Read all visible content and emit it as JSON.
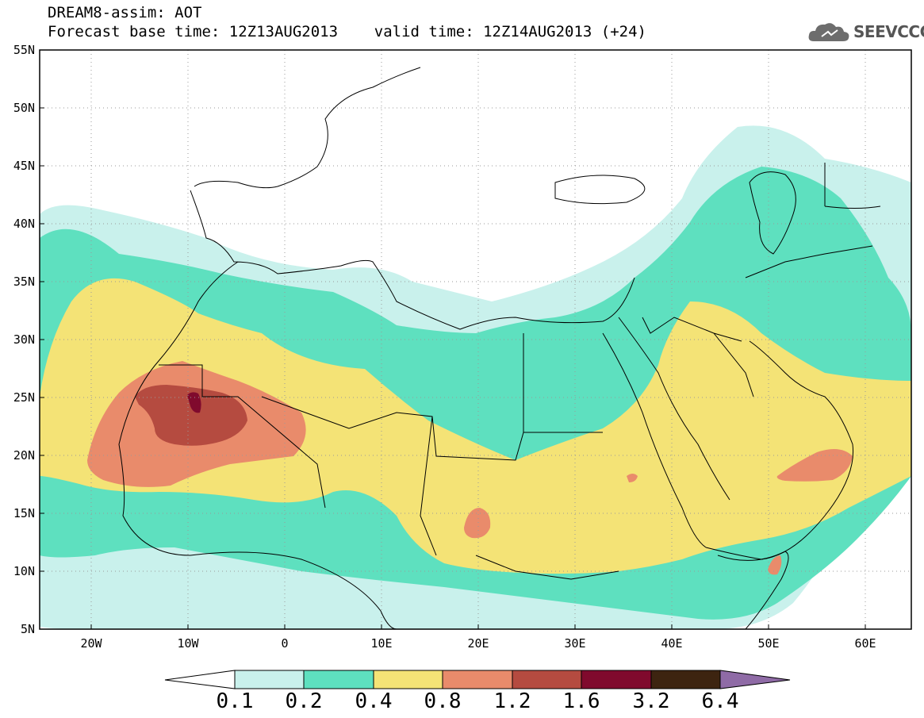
{
  "title": {
    "line1": "DREAM8-assim: AOT",
    "line2": "Forecast base time: 12Z13AUG2013    valid time: 12Z14AUG2013 (+24)"
  },
  "logo": {
    "text": "SEEVCCC",
    "icon": "cloud-icon"
  },
  "axes": {
    "lat_labels": [
      "55N",
      "50N",
      "45N",
      "40N",
      "35N",
      "30N",
      "25N",
      "20N",
      "15N",
      "10N",
      "5N"
    ],
    "lon_labels": [
      "20W",
      "10W",
      "0",
      "10E",
      "20E",
      "30E",
      "40E",
      "50E",
      "60E"
    ],
    "lat_range": [
      5,
      55
    ],
    "lon_range": [
      -25,
      65
    ],
    "grid": "dotted"
  },
  "colorbar": {
    "levels": [
      "0.1",
      "0.2",
      "0.4",
      "0.8",
      "1.2",
      "1.6",
      "3.2",
      "6.4"
    ],
    "colors": [
      "#ffffff",
      "#c9f1ec",
      "#5ee0bf",
      "#f4e376",
      "#e98b6b",
      "#b54b40",
      "#800a2d",
      "#3d2410",
      "#8f6ba6"
    ]
  }
}
